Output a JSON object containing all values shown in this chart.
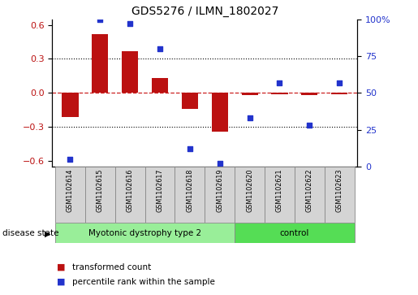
{
  "title": "GDS5276 / ILMN_1802027",
  "samples": [
    "GSM1102614",
    "GSM1102615",
    "GSM1102616",
    "GSM1102617",
    "GSM1102618",
    "GSM1102619",
    "GSM1102620",
    "GSM1102621",
    "GSM1102622",
    "GSM1102623"
  ],
  "bar_values": [
    -0.21,
    0.52,
    0.37,
    0.13,
    -0.14,
    -0.34,
    -0.02,
    -0.01,
    -0.02,
    -0.01
  ],
  "scatter_values": [
    5,
    100,
    97,
    80,
    12,
    2,
    33,
    57,
    28,
    57
  ],
  "ylim_left": [
    -0.65,
    0.65
  ],
  "ylim_right": [
    0,
    100
  ],
  "bar_color": "#bb1111",
  "scatter_color": "#2233cc",
  "zero_line_color": "#cc2222",
  "grid_color": "#000000",
  "disease_groups": [
    {
      "label": "Myotonic dystrophy type 2",
      "start": 0,
      "end": 6,
      "color": "#99ee99"
    },
    {
      "label": "control",
      "start": 6,
      "end": 10,
      "color": "#55dd55"
    }
  ],
  "disease_state_label": "disease state",
  "legend_bar_label": "transformed count",
  "legend_scatter_label": "percentile rank within the sample",
  "yticks_left": [
    -0.6,
    -0.3,
    0.0,
    0.3,
    0.6
  ],
  "yticks_right": [
    0,
    25,
    50,
    75,
    100
  ],
  "dotted_lines": [
    -0.3,
    0.3
  ],
  "sample_box_color": "#d4d4d4",
  "sample_box_edge": "#888888",
  "background_color": "#ffffff"
}
